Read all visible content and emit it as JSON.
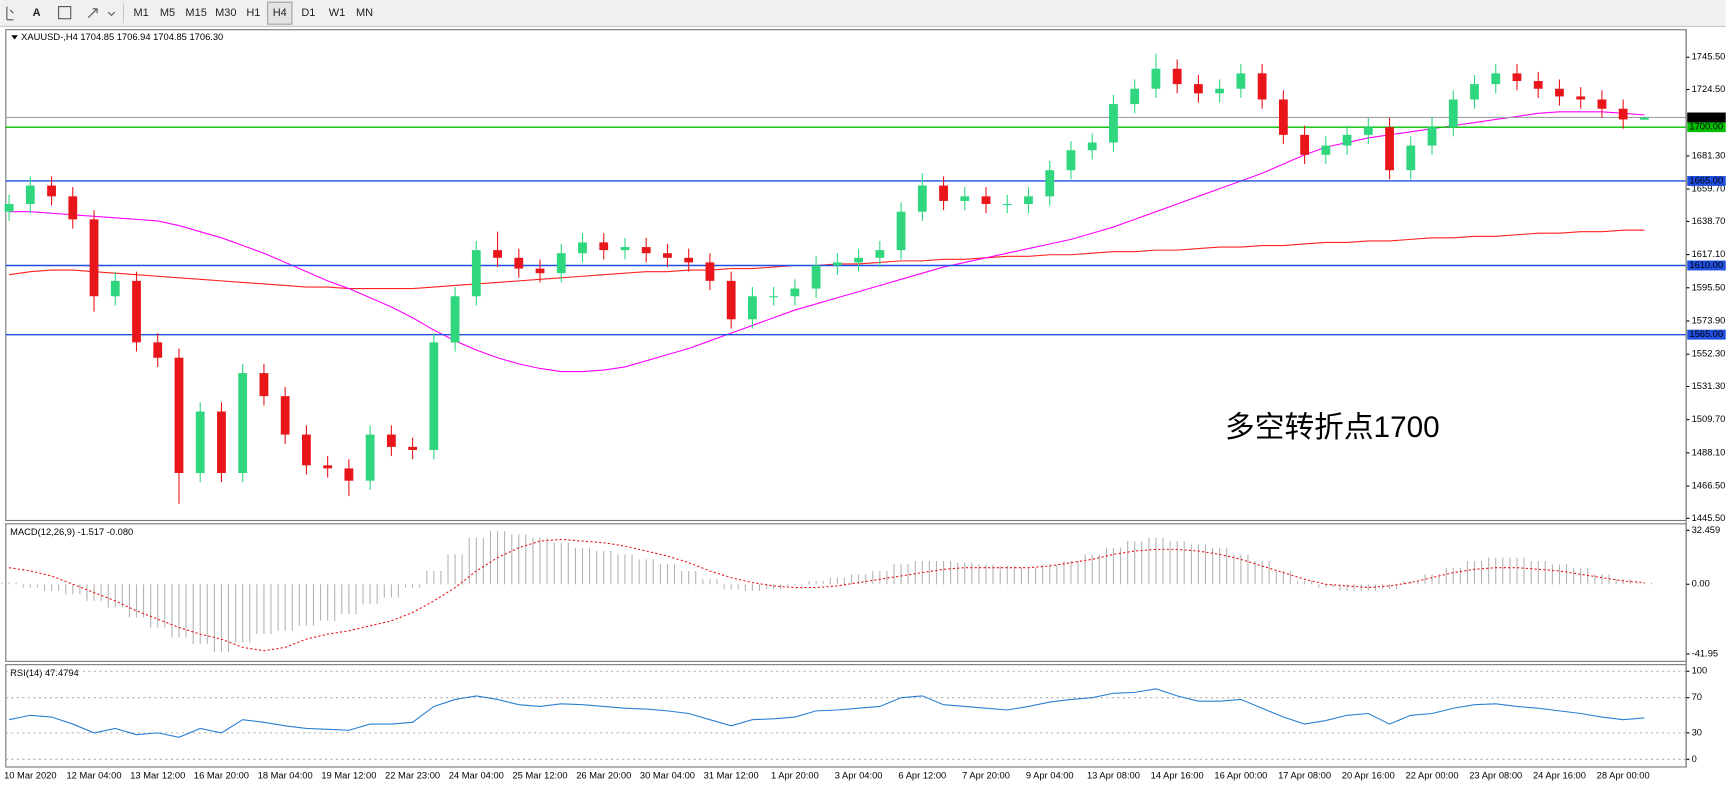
{
  "toolbar": {
    "font_tool": "A",
    "buttons": [
      "M1",
      "M5",
      "M15",
      "M30",
      "H1",
      "H4",
      "D1",
      "W1",
      "MN"
    ]
  },
  "chart_data": [
    {
      "type": "candlestick",
      "title": "XAUUSD-,H4  1704.85 1706.94 1704.85 1706.30",
      "annotation": {
        "text": "多空转折点1700",
        "color": "#ff0000"
      },
      "up_color": "#2fd67e",
      "down_color": "#e8161b",
      "categories": [
        null,
        "10 Mar 2020",
        null,
        null,
        "12 Mar 04:00",
        null,
        null,
        "13 Mar 12:00",
        null,
        null,
        "16 Mar 20:00",
        null,
        null,
        "18 Mar 04:00",
        null,
        null,
        "19 Mar 12:00",
        null,
        null,
        "22 Mar 23:00",
        null,
        null,
        "24 Mar 04:00",
        null,
        null,
        "25 Mar 12:00",
        null,
        null,
        "26 Mar 20:00",
        null,
        null,
        "30 Mar 04:00",
        null,
        null,
        "31 Mar 12:00",
        null,
        null,
        "1 Apr 20:00",
        null,
        null,
        "3 Apr 04:00",
        null,
        null,
        "6 Apr 12:00",
        null,
        null,
        "7 Apr 20:00",
        null,
        null,
        "9 Apr 04:00",
        null,
        null,
        "13 Apr 08:00",
        null,
        null,
        "14 Apr 16:00",
        null,
        null,
        "16 Apr 00:00",
        null,
        null,
        "17 Apr 08:00",
        null,
        null,
        "20 Apr 16:00",
        null,
        null,
        "22 Apr 00:00",
        null,
        null,
        "23 Apr 08:00",
        null,
        null,
        "24 Apr 16:00",
        null,
        null,
        "28 Apr 00:00",
        null
      ],
      "open": [
        1645,
        1650,
        1662,
        1655,
        1640,
        1590,
        1600,
        1560,
        1550,
        1475,
        1515,
        1475,
        1540,
        1525,
        1500,
        1480,
        1478,
        1470,
        1500,
        1492,
        1490,
        1560,
        1590,
        1620,
        1615,
        1608,
        1605,
        1618,
        1625,
        1620,
        1622,
        1618,
        1615,
        1612,
        1600,
        1575,
        1590,
        1590,
        1595,
        1610,
        1612,
        1615,
        1620,
        1645,
        1662,
        1652,
        1655,
        1650,
        1650,
        1655,
        1672,
        1685,
        1690,
        1715,
        1725,
        1738,
        1728,
        1722,
        1725,
        1735,
        1718,
        1695,
        1682,
        1688,
        1695,
        1700,
        1672,
        1688,
        1700,
        1718,
        1728,
        1735,
        1730,
        1725,
        1720,
        1718,
        1712,
        1704.85
      ],
      "high": [
        1656,
        1668,
        1668,
        1661,
        1646,
        1606,
        1606,
        1566,
        1556,
        1521,
        1521,
        1546,
        1546,
        1531,
        1506,
        1486,
        1484,
        1506,
        1506,
        1498,
        1566,
        1596,
        1626,
        1632,
        1621,
        1614,
        1624,
        1631,
        1631,
        1628,
        1628,
        1624,
        1621,
        1618,
        1606,
        1596,
        1596,
        1601,
        1616,
        1618,
        1621,
        1626,
        1651,
        1670,
        1668,
        1661,
        1661,
        1656,
        1661,
        1678,
        1691,
        1696,
        1721,
        1731,
        1748,
        1744,
        1734,
        1731,
        1741,
        1741,
        1724,
        1701,
        1694,
        1701,
        1706,
        1706,
        1694,
        1706,
        1724,
        1734,
        1741,
        1741,
        1736,
        1731,
        1726,
        1724,
        1718,
        1706.94
      ],
      "low": [
        1639,
        1644,
        1649,
        1634,
        1580,
        1584,
        1554,
        1544,
        1455,
        1469,
        1469,
        1469,
        1519,
        1494,
        1474,
        1472,
        1460,
        1464,
        1486,
        1484,
        1484,
        1554,
        1584,
        1609,
        1602,
        1599,
        1599,
        1612,
        1614,
        1614,
        1612,
        1609,
        1606,
        1594,
        1569,
        1569,
        1584,
        1584,
        1589,
        1604,
        1606,
        1609,
        1614,
        1639,
        1646,
        1646,
        1644,
        1644,
        1644,
        1649,
        1666,
        1679,
        1684,
        1709,
        1719,
        1722,
        1716,
        1716,
        1719,
        1712,
        1689,
        1676,
        1676,
        1682,
        1689,
        1666,
        1666,
        1682,
        1694,
        1712,
        1722,
        1724,
        1719,
        1714,
        1712,
        1706,
        1699,
        1704.85
      ],
      "close": [
        1650,
        1662,
        1655,
        1640,
        1590,
        1600,
        1560,
        1550,
        1475,
        1515,
        1475,
        1540,
        1525,
        1500,
        1480,
        1478,
        1470,
        1500,
        1492,
        1490,
        1560,
        1590,
        1620,
        1615,
        1608,
        1605,
        1618,
        1625,
        1620,
        1622,
        1618,
        1615,
        1612,
        1600,
        1575,
        1590,
        1590,
        1595,
        1610,
        1612,
        1615,
        1620,
        1645,
        1662,
        1652,
        1655,
        1650,
        1650,
        1655,
        1672,
        1685,
        1690,
        1715,
        1725,
        1738,
        1728,
        1722,
        1725,
        1735,
        1718,
        1695,
        1682,
        1688,
        1695,
        1700,
        1672,
        1688,
        1700,
        1718,
        1728,
        1735,
        1730,
        1725,
        1720,
        1718,
        1712,
        1705,
        1706.3
      ],
      "series": [
        {
          "color": "#ff2020",
          "values": [
            1604,
            1606,
            1607,
            1607,
            1606,
            1605,
            1604,
            1603,
            1602,
            1601,
            1600,
            1599,
            1598,
            1597,
            1596,
            1596,
            1595,
            1595,
            1595,
            1595,
            1596,
            1597,
            1598,
            1599,
            1600,
            1601,
            1602,
            1603,
            1604,
            1605,
            1606,
            1606,
            1607,
            1607,
            1608,
            1608,
            1609,
            1610,
            1610,
            1611,
            1611,
            1612,
            1613,
            1613,
            1614,
            1614,
            1615,
            1616,
            1616,
            1617,
            1617,
            1618,
            1619,
            1619,
            1620,
            1620,
            1621,
            1622,
            1622,
            1623,
            1623,
            1624,
            1625,
            1625,
            1626,
            1626,
            1627,
            1628,
            1628,
            1629,
            1629,
            1630,
            1631,
            1631,
            1632,
            1632,
            1633,
            1633
          ]
        },
        {
          "color": "#ff00ff",
          "values": [
            1645,
            1645,
            1644,
            1643,
            1642,
            1641,
            1640,
            1639,
            1636,
            1632,
            1628,
            1623,
            1618,
            1612,
            1606,
            1600,
            1595,
            1589,
            1583,
            1576,
            1568,
            1561,
            1555,
            1550,
            1546,
            1543,
            1541,
            1541,
            1542,
            1544,
            1548,
            1552,
            1556,
            1561,
            1566,
            1571,
            1576,
            1581,
            1585,
            1589,
            1593,
            1597,
            1601,
            1605,
            1609,
            1612,
            1615,
            1618,
            1621,
            1624,
            1627,
            1631,
            1635,
            1640,
            1645,
            1650,
            1655,
            1660,
            1665,
            1670,
            1676,
            1682,
            1687,
            1690,
            1693,
            1695,
            1697,
            1699,
            1701,
            1703,
            1705,
            1707,
            1709,
            1710,
            1710,
            1710,
            1709,
            1708
          ]
        }
      ],
      "levels": [
        {
          "value": 1700,
          "label": "1700.00",
          "color": "#00c000"
        },
        {
          "value": 1665,
          "label": "1665.00",
          "color": "#1f4fe0"
        },
        {
          "value": 1610,
          "label": "1610.00",
          "color": "#1f4fe0"
        },
        {
          "value": 1565,
          "label": "1565.00",
          "color": "#1f4fe0"
        }
      ],
      "last_price": {
        "value": 1706.3,
        "label": "1706.30",
        "color": "#a0a0a0"
      },
      "ylim": [
        1444.1,
        1763.4
      ],
      "yticks": [
        {
          "value": 1745.5,
          "label": "1745.50"
        },
        {
          "value": 1724.5,
          "label": "1724.50"
        },
        {
          "value": 1681.3,
          "label": "1681.30"
        },
        {
          "value": 1659.7,
          "label": "1659.70"
        },
        {
          "value": 1638.7,
          "label": "1638.70"
        },
        {
          "value": 1617.1,
          "label": "1617.10"
        },
        {
          "value": 1595.5,
          "label": "1595.50"
        },
        {
          "value": 1573.9,
          "label": "1573.90"
        },
        {
          "value": 1552.3,
          "label": "1552.30"
        },
        {
          "value": 1531.3,
          "label": "1531.30"
        },
        {
          "value": 1509.7,
          "label": "1509.70"
        },
        {
          "value": 1488.1,
          "label": "1488.10"
        },
        {
          "value": 1466.5,
          "label": "1466.50"
        },
        {
          "value": 1445.5,
          "label": "1445.50"
        }
      ],
      "grid": false
    },
    {
      "type": "macd",
      "title": "MACD(12,26,9) -1.517 -0.080",
      "color": "#b4b4b4",
      "signal_color": "#e8161b",
      "histogram": [
        1,
        -2,
        -4,
        -6,
        -10,
        -14,
        -20,
        -26,
        -32,
        -36,
        -41,
        -35,
        -30,
        -28,
        -25,
        -22,
        -18,
        -12,
        -8,
        -2,
        8,
        18,
        28,
        32,
        30,
        28,
        25,
        22,
        20,
        18,
        15,
        12,
        8,
        3,
        -3,
        -4,
        -3,
        -1,
        2,
        4,
        6,
        8,
        12,
        14,
        14,
        13,
        12,
        11,
        10,
        12,
        14,
        18,
        22,
        26,
        28,
        26,
        24,
        22,
        18,
        14,
        8,
        2,
        -2,
        -4,
        -4,
        -3,
        2,
        6,
        10,
        14,
        16,
        16,
        14,
        12,
        10,
        6,
        3,
        1
      ],
      "signal": [
        10,
        8,
        5,
        0,
        -5,
        -10,
        -16,
        -21,
        -26,
        -30,
        -33,
        -38,
        -40,
        -38,
        -33,
        -30,
        -28,
        -25,
        -22,
        -17,
        -10,
        -2,
        8,
        16,
        22,
        26,
        27,
        26,
        25,
        23,
        20,
        17,
        13,
        8,
        4,
        1,
        -1,
        -2,
        -2,
        -1,
        1,
        3,
        5,
        7,
        9,
        10,
        10,
        10,
        10,
        11,
        13,
        15,
        18,
        20,
        21,
        21,
        20,
        18,
        15,
        11,
        7,
        3,
        0,
        -1,
        -2,
        -1,
        1,
        4,
        7,
        9,
        10,
        10,
        9,
        8,
        6,
        4,
        2,
        1
      ],
      "ylim": [
        -46.4,
        36.4
      ],
      "yticks": [
        32.459,
        {
          "value": 0,
          "label": "0.00"
        },
        -41.95
      ]
    },
    {
      "type": "rsi",
      "title": "RSI(14) 47.4794",
      "color": "#2a7fd4",
      "values": [
        45,
        50,
        48,
        40,
        30,
        35,
        28,
        30,
        25,
        35,
        30,
        45,
        42,
        38,
        35,
        34,
        33,
        40,
        40,
        42,
        60,
        68,
        72,
        68,
        62,
        60,
        63,
        62,
        60,
        58,
        57,
        55,
        52,
        45,
        38,
        45,
        46,
        48,
        55,
        56,
        58,
        60,
        70,
        72,
        62,
        60,
        58,
        56,
        60,
        65,
        68,
        70,
        75,
        76,
        80,
        72,
        66,
        66,
        68,
        58,
        48,
        40,
        44,
        50,
        52,
        40,
        50,
        52,
        58,
        62,
        63,
        60,
        58,
        55,
        52,
        48,
        45,
        47
      ],
      "ylim": [
        -8.75,
        107.5
      ],
      "yticks": [
        100,
        70,
        30,
        0
      ],
      "grid": true
    }
  ]
}
